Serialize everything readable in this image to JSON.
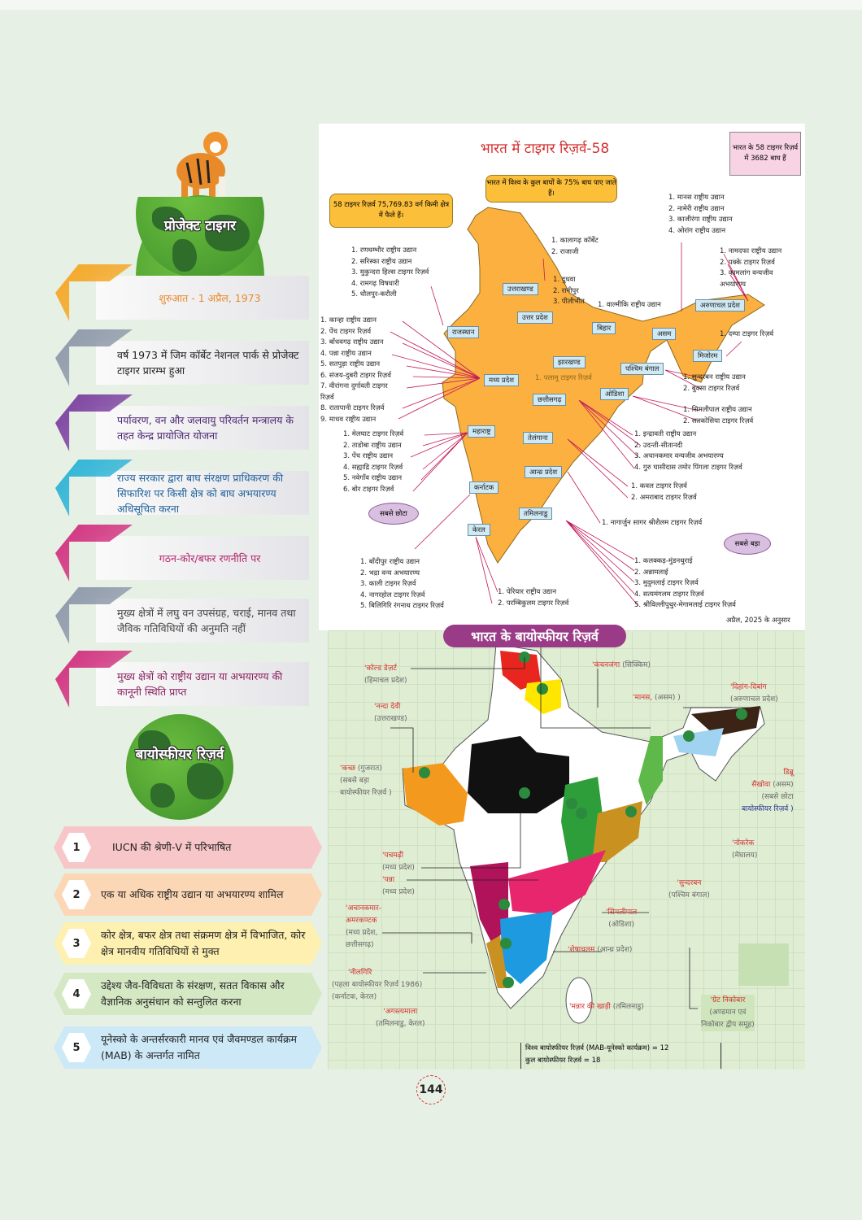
{
  "left": {
    "project_tiger_title": "प्रोजेक्ट टाइगर",
    "banners": [
      {
        "text": "शुरुआत - 1 अप्रैल, 1973",
        "color": "#f5a623",
        "text_color": "#e8892b"
      },
      {
        "text": "वर्ष 1973 में जिम कॉर्बेट नेशनल पार्क से प्रोजेक्ट टाइगर प्रारम्भ हुआ",
        "color": "#8d98aa",
        "text_color": "#222222"
      },
      {
        "text": "पर्यावरण, वन और जलवायु परिवर्तन मन्त्रालय के तहत केन्द्र प्रायोजित योजना",
        "color": "#7b3fa0",
        "text_color": "#4a2470"
      },
      {
        "text": "राज्य सरकार द्वारा बाघ संरक्षण प्राधिकरण की सिफारिश पर किसी क्षेत्र को बाघ अभयारण्य अधिसूचित करना",
        "color": "#2bb3d6",
        "text_color": "#1d5f9a"
      },
      {
        "text": "गठन-कोर/बफर रणनीति पर",
        "color": "#d2307f",
        "text_color": "#b3236b"
      },
      {
        "text": "मुख्य क्षेत्रों में लघु वन उपसंग्रह, चराई, मानव तथा जैविक गतिविधियों की अनुमति नहीं",
        "color": "#8d98aa",
        "text_color": "#444444"
      },
      {
        "text": "मुख्य क्षेत्रों को राष्ट्रीय उद्यान या अभयारण्य की कानूनी स्थिति प्राप्त",
        "color": "#d2307f",
        "text_color": "#8a1f5e"
      }
    ],
    "biosphere_title": "बायोस्फीयर रिज़र्व",
    "points": [
      {
        "num": "1",
        "text": "IUCN की श्रेणी-V में परिभाषित",
        "color": "#f7c6c9"
      },
      {
        "num": "2",
        "text": "एक या अधिक राष्ट्रीय उद्यान या अभयारण्य शामिल",
        "color": "#fbd7b5"
      },
      {
        "num": "3",
        "text": "कोर क्षेत्र, बफर क्षेत्र तथा संक्रमण क्षेत्र में विभाजित, कोर क्षेत्र मानवीय गतिविधियों से मुक्त",
        "color": "#fdf0b0"
      },
      {
        "num": "4",
        "text": "उद्देश्य जैव-विविधता के संरक्षण, सतत विकास और वैज्ञानिक अनुसंधान को सन्तुलित करना",
        "color": "#d5e8c4"
      },
      {
        "num": "5",
        "text": "यूनेस्को के अन्तर्सरकारी मानव एवं जैवमण्डल कार्यक्रम (MAB) के अन्तर्गत नामित",
        "color": "#cde9f7"
      }
    ]
  },
  "tiger_map": {
    "title": "भारत में टाइगर रिज़र्व-58",
    "pink_note": "भारत के 58 टाइगर रिज़र्व में 3682 बाघ हैं",
    "world_share_note": "भारत में विश्व के कुल बाघों के 75% बाघ पाए जाते हैं।",
    "area_note": "58 टाइगर रिज़र्व 75,769.83 वर्ग किमी क्षेत्र में फैले हैं।",
    "states": {
      "uttarakhand": "उत्तराखण्ड",
      "uttar_pradesh": "उत्तर प्रदेश",
      "rajasthan": "राजस्थान",
      "bihar": "बिहार",
      "assam": "असम",
      "arunachal": "अरुणाचल प्रदेश",
      "jharkhand": "झारखण्ड",
      "west_bengal": "पश्चिम बंगाल",
      "mizoram": "मिजोरम",
      "madhya_pradesh": "मध्य प्रदेश",
      "chhattisgarh": "छत्तीसगढ़",
      "odisha": "ओडिशा",
      "maharashtra": "महाराष्ट्र",
      "telangana": "तेलंगाना",
      "andhra": "आन्ध्र प्रदेश",
      "karnataka": "कर्नाटक",
      "tamil_nadu": "तमिलनाडु",
      "kerala": "केरल"
    },
    "lists": {
      "assam": [
        "1. मानस राष्ट्रीय उद्यान",
        "2. नामेरी राष्ट्रीय उद्यान",
        "3. काजीरंगा राष्ट्रीय उद्यान",
        "4. ओरांग राष्ट्रीय उद्यान"
      ],
      "uttarakhand": [
        "1. कालागढ़ कॉर्बेट",
        "2. राजाजी"
      ],
      "rajasthan": [
        "1. रणथम्भौर राष्ट्रीय उद्यान",
        "2. सरिस्का राष्ट्रीय उद्यान",
        "3. मुकुन्दरा हिल्स टाइगर रिज़र्व",
        "4. रामगढ़ विषधारी",
        "5. धौलपुर-करौली"
      ],
      "arunachal": [
        "1. नामदफा राष्ट्रीय उद्यान",
        "2. पक्के टाइगर रिज़र्व",
        "3. कामलांग वन्यजीव",
        "अभयारण्य"
      ],
      "uttar_pradesh": [
        "1. दुधवा",
        "2. रानीपुर",
        "3. पीलीभीत"
      ],
      "bihar": [
        "1. वाल्मीकि राष्ट्रीय उद्यान"
      ],
      "madhya_pradesh": [
        "1. कान्हा राष्ट्रीय उद्यान",
        "2. पेंच टाइगर रिज़र्व",
        "3. बाँधवगढ़ राष्ट्रीय उद्यान",
        "4. पन्ना राष्ट्रीय उद्यान",
        "5. सतपुड़ा राष्ट्रीय उद्यान",
        "6. संजय-दुबरी टाइगर रिज़र्व",
        "7. वीरांगना दुर्गावती टाइगर",
        "रिज़र्व",
        "8. रातापानी टाइगर रिज़र्व",
        "9. माधव राष्ट्रीय उद्यान"
      ],
      "mizoram": [
        "1. दम्पा टाइगर रिज़र्व"
      ],
      "jharkhand": [
        "1. पलामू टाइगर रिज़र्व"
      ],
      "west_bengal": [
        "1. सुन्दरबन राष्ट्रीय उद्यान",
        "2. बुक्सा टाइगर रिज़र्व"
      ],
      "odisha": [
        "1. सिमलीपाल राष्ट्रीय उद्यान",
        "2. सतकोसिया टाइगर रिज़र्व"
      ],
      "maharashtra": [
        "1. मेलघाट टाइगर रिज़र्व",
        "2. ताडोबा राष्ट्रीय उद्यान",
        "3. पेंच राष्ट्रीय उद्यान",
        "4. सह्याद्रि टाइगर रिज़र्व",
        "5. नवेगाँव राष्ट्रीय उद्यान",
        "6. बोर टाइगर रिज़र्व"
      ],
      "chhattisgarh": [
        "1. इन्द्रावती राष्ट्रीय उद्यान",
        "2. उदन्ती-सीतानदी",
        "3. अचानकमार वन्यजीव अभयारण्य",
        "4. गुरु घासीदास तमोर पिंगला टाइगर रिज़र्व"
      ],
      "telangana": [
        "1. कवल टाइगर रिज़र्व",
        "2. अमराबाद टाइगर रिज़र्व"
      ],
      "andhra": [
        "1. नागार्जुन सागर श्रीशैलम टाइगर रिज़र्व"
      ],
      "karnataka": [
        "1. बाँदीपुर राष्ट्रीय उद्यान",
        "2. भद्रा वन्य अभयारण्य",
        "3. काली टाइगर रिज़र्व",
        "4. नागरहोल टाइगर रिज़र्व",
        "5. बिलिगिरि रंगनाथ टाइगर रिज़र्व"
      ],
      "kerala": [
        "1. पेरियार राष्ट्रीय उद्यान",
        "2. परम्बिकुलम टाइगर रिज़र्व"
      ],
      "tamil_nadu": [
        "1. कलक्कड़-मुंडनथुराई",
        "2. अन्नामलाई",
        "3. मुदुमलाई टाइगर रिज़र्व",
        "4. सत्यमंगलम टाइगर रिज़र्व",
        "5. श्रीविल्लीपुथुर-मेगामलाई टाइगर रिज़र्व"
      ]
    },
    "smallest_label": "सबसे छोटा",
    "largest_label": "सबसे बड़ा",
    "as_of": "अप्रैल, 2025 के अनुसार",
    "map_color": "#fbb040"
  },
  "biosphere_map": {
    "title": "भारत के बायोस्फीयर रिज़र्व",
    "labels": {
      "cold_desert": {
        "name": "'कोल्ड डेज़र्ट",
        "state": "(हिमाचल प्रदेश)"
      },
      "nanda_devi": {
        "name": "'नन्दा देवी",
        "state": "(उत्तराखण्ड)"
      },
      "kachchh": {
        "name": "'कच्छ",
        "state": "(गुजरात)",
        "note1": "(सबसे बड़ा",
        "note2": "बायोस्फीयर रिज़र्व )"
      },
      "kanchenjunga": {
        "name": "'कंचनजंगा",
        "state": "(सिक्किम)"
      },
      "manas": {
        "name": "'मानस,",
        "state": "(असम) )"
      },
      "dihang": {
        "name": "'दिहांग-दिबांग",
        "state": "(अरुणाचल प्रदेश)"
      },
      "dibru": {
        "name1": "डिब्रू",
        "name2": "सैखोवा",
        "state": "(असम)",
        "note1": "(सबसे छोटा",
        "note2": "बायोस्फीयर रिज़र्व )"
      },
      "nokrek": {
        "name": "'नोकरेक",
        "state": "(मेघालय)"
      },
      "pachmarhi": {
        "name": "'पचमढ़ी",
        "state": "(मध्य प्रदेश)"
      },
      "panna": {
        "name": "'पन्ना",
        "state": "(मध्य प्रदेश)"
      },
      "achanakmar": {
        "name1": "'अचानकमार-",
        "name2": "अमरकण्टक",
        "state1": "(मध्य प्रदेश,",
        "state2": "छत्तीसगढ़)"
      },
      "sundarban": {
        "name": "'सुन्दरबन",
        "state": "(पश्चिम बंगाल)"
      },
      "simlipal": {
        "name": "'सिमलीपाल",
        "state": "(ओडिशा)"
      },
      "seshachalam": {
        "name": "'शेषाचलम",
        "state": "(आन्ध्र प्रदेश)"
      },
      "nilgiri": {
        "name": "'नीलगिरि",
        "note": "(पहला बायोस्फीयर रिज़र्व 1986)",
        "state": "(कर्नाटक, केरल)"
      },
      "agasthyamala": {
        "name": "'अगस्त्यमाला",
        "state": "(तमिलनाडु, केरल)"
      },
      "mannar": {
        "name": "'मन्नार की खाड़ी",
        "state": "(तमिलनाडु)"
      },
      "great_nicobar": {
        "name": "'ग्रेट निकोबार",
        "state1": "(अण्डमान एवं",
        "state2": "निकोबार द्वीप समूह)"
      }
    },
    "summary": [
      "विश्व बायोस्फीयर रिज़र्व (MAB-यूनेस्को कार्यक्रम) = 12",
      "कुल बायोस्फीयर रिज़र्व = 18"
    ]
  },
  "page_number": "144"
}
